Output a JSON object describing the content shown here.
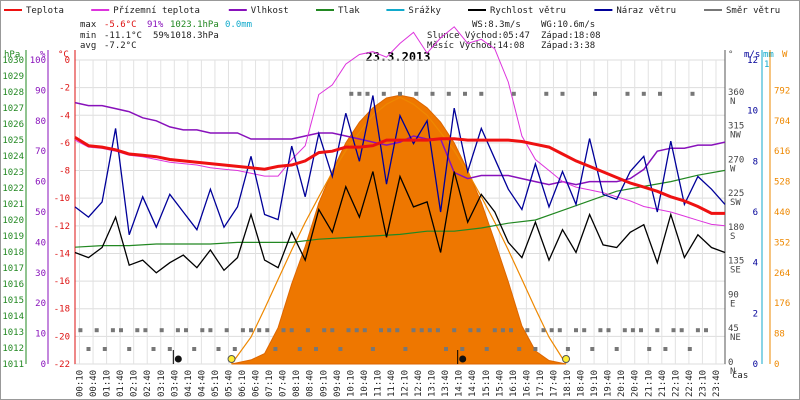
{
  "chart_data": {
    "type": "line",
    "title": "23.3.2013",
    "legend": [
      {
        "name": "Teplota",
        "color": "#ee1111"
      },
      {
        "name": "Přízemní teplota",
        "color": "#dd33dd"
      },
      {
        "name": "Vlhkost",
        "color": "#8811bb"
      },
      {
        "name": "Tlak",
        "color": "#228822"
      },
      {
        "name": "Srážky",
        "color": "#11aacc"
      },
      {
        "name": "Rychlost větru",
        "color": "#000000"
      },
      {
        "name": "Náraz větru",
        "color": "#000099"
      },
      {
        "name": "Směr větru",
        "color": "#777777"
      }
    ],
    "stats": {
      "max_label": "max",
      "min_label": "min",
      "avg_label": "avg",
      "max_temp": "-5.6°C",
      "max_hum": "91%",
      "max_press": "1023.1hPa",
      "max_rain": "0.0mm",
      "min_temp": "-11.1°C",
      "min_hum": "59%",
      "min_press": "1018.3hPa",
      "avg_temp": "-7.2°C",
      "ws": "WS:8.3m/s",
      "wg": "WG:10.6m/s",
      "sun": "Slunce Východ:05:47",
      "sun_set": "Západ:18:08",
      "moon": "Měsíc  Východ:14:08",
      "moon_set": "Západ:3:38"
    },
    "axis_units": {
      "hpa": "hPa",
      "pct": "%",
      "degc": "°C",
      "deg": "°",
      "ms": "m/s",
      "mm": "mm",
      "w": "W",
      "cas": "čas"
    },
    "y_left_hpa": [
      "1030",
      "1029",
      "1028",
      "1027",
      "1026",
      "1025",
      "1024",
      "1023",
      "1022",
      "1021",
      "1020",
      "1019",
      "1018",
      "1017",
      "1016",
      "1015",
      "1014",
      "1013",
      "1012",
      "1011"
    ],
    "y_left_pct": [
      "100",
      "90",
      "80",
      "70",
      "60",
      "50",
      "40",
      "30",
      "20",
      "10",
      "0"
    ],
    "y_left_temp": [
      "0",
      "-2",
      "-4",
      "-6",
      "-8",
      "-10",
      "-12",
      "-14",
      "-16",
      "-18",
      "-20",
      "-22"
    ],
    "y_right_deg": [
      "360",
      "315",
      "270",
      "225",
      "180",
      "135",
      "90",
      "45",
      "0"
    ],
    "y_right_dir": [
      "N",
      "NW",
      "W",
      "SW",
      "S",
      "SE",
      "E",
      "NE",
      "N"
    ],
    "y_right_ms": [
      "12",
      "10",
      "8",
      "6",
      "4",
      "2",
      "0"
    ],
    "y_right_mm": [
      "1"
    ],
    "y_right_w": [
      "792",
      "704",
      "616",
      "528",
      "440",
      "352",
      "264",
      "176",
      "88",
      "0"
    ],
    "x_ticks": [
      "00:10",
      "00:40",
      "01:10",
      "01:40",
      "02:10",
      "02:40",
      "03:10",
      "03:40",
      "04:10",
      "04:40",
      "05:10",
      "05:40",
      "06:10",
      "06:40",
      "07:10",
      "07:40",
      "08:10",
      "08:40",
      "09:10",
      "09:40",
      "10:10",
      "10:40",
      "11:10",
      "11:40",
      "12:10",
      "12:40",
      "13:10",
      "13:40",
      "14:10",
      "14:40",
      "15:10",
      "15:40",
      "16:10",
      "16:40",
      "17:10",
      "17:40",
      "18:10",
      "18:40",
      "19:10",
      "19:40",
      "20:10",
      "20:40",
      "21:10",
      "21:40",
      "22:10",
      "22:40",
      "23:10",
      "23:40"
    ],
    "x_range_hours": [
      0,
      24
    ],
    "temp_range": [
      -22,
      0
    ],
    "pct_range": [
      0,
      100
    ],
    "ms_range": [
      0,
      12
    ],
    "w_range": [
      0,
      880
    ],
    "deg_range": [
      0,
      405
    ],
    "sun_rise_h": 5.78,
    "sun_set_h": 18.13,
    "moon_rise_h": 14.13,
    "moon_set_h": 3.63,
    "temperature": {
      "hours": [
        0,
        0.5,
        1,
        1.5,
        2,
        2.5,
        3,
        3.5,
        4,
        4.5,
        5,
        5.5,
        6,
        6.5,
        7,
        7.5,
        8,
        8.5,
        9,
        9.5,
        10,
        10.5,
        11,
        11.5,
        12,
        12.5,
        13,
        13.5,
        14,
        14.5,
        15,
        15.5,
        16,
        16.5,
        17,
        17.5,
        18,
        18.5,
        19,
        19.5,
        20,
        20.5,
        21,
        21.5,
        22,
        22.5,
        23,
        23.5,
        24
      ],
      "values": [
        -5.6,
        -6.2,
        -6.3,
        -6.5,
        -6.8,
        -6.9,
        -7.0,
        -7.2,
        -7.3,
        -7.4,
        -7.5,
        -7.6,
        -7.7,
        -7.8,
        -7.9,
        -7.7,
        -7.6,
        -7.3,
        -6.7,
        -6.6,
        -6.3,
        -6.3,
        -6.2,
        -5.8,
        -5.8,
        -5.8,
        -5.8,
        -5.7,
        -5.7,
        -5.8,
        -5.8,
        -5.8,
        -5.8,
        -5.9,
        -6.1,
        -6.3,
        -6.8,
        -7.3,
        -7.7,
        -8.1,
        -8.5,
        -8.9,
        -9.2,
        -9.5,
        -9.9,
        -10.2,
        -10.6,
        -11.1,
        -11.1
      ]
    },
    "ground_temperature": {
      "hours": [
        0,
        0.5,
        1,
        1.5,
        2,
        2.5,
        3,
        3.5,
        4,
        4.5,
        5,
        5.5,
        6,
        6.5,
        7,
        7.5,
        8,
        8.5,
        9,
        9.5,
        10,
        10.5,
        11,
        11.5,
        12,
        12.5,
        13,
        13.5,
        14,
        14.5,
        15,
        15.5,
        16,
        16.5,
        17,
        17.5,
        18,
        18.5,
        19,
        19.5,
        20,
        20.5,
        21,
        21.5,
        22,
        22.5,
        23,
        23.5,
        24
      ],
      "values": [
        -5.8,
        -6.3,
        -6.4,
        -6.6,
        -6.9,
        -7.0,
        -7.2,
        -7.4,
        -7.5,
        -7.6,
        -7.8,
        -7.9,
        -8.0,
        -8.2,
        -8.4,
        -8.4,
        -7.2,
        -6.2,
        -2.5,
        -1.8,
        -0.3,
        0.4,
        0.6,
        0.2,
        1.2,
        2.0,
        0.5,
        1.6,
        2.4,
        1.2,
        1.5,
        0.8,
        -1.6,
        -5.5,
        -7.2,
        -8.0,
        -8.8,
        -9.2,
        -9.4,
        -9.6,
        -9.9,
        -10.2,
        -10.6,
        -10.8,
        -11.0,
        -11.3,
        -11.6,
        -11.9,
        -12.0
      ]
    },
    "humidity": {
      "hours": [
        0,
        0.5,
        1,
        1.5,
        2,
        2.5,
        3,
        3.5,
        4,
        4.5,
        5,
        5.5,
        6,
        6.5,
        7,
        7.5,
        8,
        8.5,
        9,
        9.5,
        10,
        10.5,
        11,
        11.5,
        12,
        12.5,
        13,
        13.5,
        14,
        14.5,
        15,
        15.5,
        16,
        16.5,
        17,
        17.5,
        18,
        18.5,
        19,
        19.5,
        20,
        20.5,
        21,
        21.5,
        22,
        22.5,
        23,
        23.5,
        24
      ],
      "values": [
        86,
        85,
        85,
        84,
        83,
        81,
        80,
        78,
        77,
        77,
        76,
        76,
        76,
        74,
        74,
        74,
        74,
        75,
        76,
        76,
        75,
        74,
        73,
        72,
        73,
        75,
        74,
        74,
        63,
        61,
        62,
        62,
        62,
        61,
        60,
        59,
        60,
        59,
        60,
        60,
        60,
        61,
        64,
        70,
        71,
        71,
        72,
        72,
        73
      ]
    },
    "pressure": {
      "hours": [
        0,
        1,
        2,
        3,
        4,
        5,
        6,
        7,
        8,
        9,
        10,
        11,
        12,
        13,
        14,
        15,
        16,
        17,
        18,
        19,
        20,
        21,
        22,
        23,
        24
      ],
      "values": [
        1018.3,
        1018.4,
        1018.4,
        1018.5,
        1018.5,
        1018.5,
        1018.6,
        1018.6,
        1018.6,
        1018.8,
        1018.9,
        1019.0,
        1019.1,
        1019.3,
        1019.3,
        1019.5,
        1019.8,
        1020.0,
        1020.6,
        1021.2,
        1021.8,
        1022.1,
        1022.4,
        1022.8,
        1023.1
      ]
    },
    "wind_speed": {
      "hours": [
        0,
        0.5,
        1,
        1.5,
        2,
        2.5,
        3,
        3.5,
        4,
        4.5,
        5,
        5.5,
        6,
        6.5,
        7,
        7.5,
        8,
        8.5,
        9,
        9.5,
        10,
        10.5,
        11,
        11.5,
        12,
        12.5,
        13,
        13.5,
        14,
        14.5,
        15,
        15.5,
        16,
        16.5,
        17,
        17.5,
        18,
        18.5,
        19,
        19.5,
        20,
        20.5,
        21,
        21.5,
        22,
        22.5,
        23,
        23.5,
        24
      ],
      "values": [
        4.4,
        4.2,
        4.6,
        5.8,
        3.9,
        4.1,
        3.6,
        4.0,
        4.3,
        3.8,
        4.5,
        3.7,
        4.2,
        5.9,
        4.1,
        3.8,
        5.2,
        4.1,
        6.1,
        5.2,
        7.0,
        5.8,
        7.6,
        5.0,
        7.4,
        6.2,
        6.4,
        4.4,
        7.6,
        5.6,
        6.7,
        6.0,
        4.8,
        4.2,
        5.6,
        4.1,
        5.3,
        4.4,
        5.9,
        4.7,
        4.6,
        5.2,
        5.5,
        4.0,
        5.9,
        4.2,
        5.1,
        4.6,
        4.4
      ]
    },
    "wind_gust": {
      "hours": [
        0,
        0.5,
        1,
        1.5,
        2,
        2.5,
        3,
        3.5,
        4,
        4.5,
        5,
        5.5,
        6,
        6.5,
        7,
        7.5,
        8,
        8.5,
        9,
        9.5,
        10,
        10.5,
        11,
        11.5,
        12,
        12.5,
        13,
        13.5,
        14,
        14.5,
        15,
        15.5,
        16,
        16.5,
        17,
        17.5,
        18,
        18.5,
        19,
        19.5,
        20,
        20.5,
        21,
        21.5,
        22,
        22.5,
        23,
        23.5,
        24
      ],
      "values": [
        6.2,
        5.8,
        6.4,
        9.3,
        5.1,
        6.6,
        5.4,
        6.7,
        6.0,
        5.3,
        6.9,
        5.4,
        6.2,
        8.2,
        5.9,
        5.7,
        8.6,
        6.6,
        9.1,
        7.4,
        9.9,
        8.0,
        10.6,
        7.1,
        9.8,
        8.7,
        9.6,
        6.0,
        10.1,
        7.6,
        9.3,
        8.1,
        6.9,
        6.1,
        7.9,
        6.2,
        7.6,
        6.3,
        8.9,
        6.7,
        6.5,
        7.6,
        8.2,
        6.0,
        8.8,
        6.3,
        7.4,
        6.9,
        6.3
      ]
    },
    "solar_radiation": {
      "hours": [
        5.78,
        6.5,
        7,
        7.5,
        8,
        8.5,
        9,
        9.5,
        10,
        10.5,
        11,
        11.5,
        12,
        12.5,
        13,
        13.5,
        14,
        14.5,
        15,
        15.5,
        16,
        16.5,
        17,
        17.5,
        18.13
      ],
      "values": [
        0,
        12,
        30,
        105,
        232,
        340,
        466,
        558,
        640,
        700,
        742,
        770,
        778,
        770,
        742,
        700,
        640,
        560,
        468,
        355,
        238,
        110,
        38,
        10,
        0
      ]
    },
    "solar_theoretical": {
      "hours": [
        5.78,
        6.5,
        7,
        7.5,
        8,
        8.5,
        9,
        9.5,
        10,
        10.5,
        11,
        11.5,
        12,
        12.5,
        13,
        13.5,
        14,
        14.5,
        15,
        15.5,
        16,
        16.5,
        17,
        17.5,
        18.13
      ],
      "values": [
        0,
        78,
        160,
        245,
        330,
        410,
        484,
        555,
        618,
        670,
        720,
        752,
        772,
        752,
        720,
        670,
        618,
        555,
        484,
        410,
        330,
        245,
        160,
        78,
        0
      ]
    },
    "wind_direction": {
      "hours": [
        0.2,
        0.5,
        0.8,
        1.1,
        1.4,
        1.7,
        2.0,
        2.3,
        2.6,
        2.9,
        3.2,
        3.5,
        3.8,
        4.1,
        4.4,
        4.7,
        5.0,
        5.3,
        5.6,
        5.9,
        6.2,
        6.5,
        6.8,
        7.1,
        7.4,
        7.7,
        8.0,
        8.3,
        8.6,
        8.9,
        9.2,
        9.5,
        9.8,
        10.1,
        10.4,
        10.7,
        11.0,
        11.3,
        11.6,
        11.9,
        12.2,
        12.5,
        12.8,
        13.1,
        13.4,
        13.7,
        14.0,
        14.3,
        14.6,
        14.9,
        15.2,
        15.5,
        15.8,
        16.1,
        16.4,
        16.7,
        17.0,
        17.3,
        17.6,
        17.9,
        18.2,
        18.5,
        18.8,
        19.1,
        19.4,
        19.7,
        20.0,
        20.3,
        20.6,
        20.9,
        21.2,
        21.5,
        21.8,
        22.1,
        22.4,
        22.7,
        23.0,
        23.3
      ],
      "values": [
        45,
        20,
        45,
        20,
        45,
        45,
        20,
        45,
        45,
        20,
        45,
        20,
        45,
        45,
        20,
        45,
        45,
        20,
        45,
        20,
        45,
        45,
        45,
        45,
        20,
        45,
        45,
        20,
        45,
        20,
        45,
        45,
        20,
        45,
        45,
        45,
        20,
        45,
        45,
        45,
        20,
        45,
        45,
        45,
        45,
        20,
        45,
        20,
        45,
        45,
        20,
        45,
        45,
        45,
        20,
        45,
        20,
        45,
        45,
        45,
        20,
        45,
        45,
        20,
        45,
        45,
        20,
        45,
        45,
        45,
        20,
        45,
        20,
        45,
        45,
        20,
        45,
        45
      ]
    },
    "wind_direction_north": {
      "hours": [
        10.2,
        10.5,
        10.8,
        11.4,
        12.0,
        12.6,
        13.2,
        13.8,
        14.4,
        15.0,
        16.2,
        17.4,
        18.0,
        19.2,
        20.4,
        21.0,
        21.6,
        22.8
      ],
      "values": [
        360,
        360,
        360,
        360,
        360,
        360,
        360,
        360,
        360,
        360,
        360,
        360,
        360,
        360,
        360,
        360,
        360,
        360
      ]
    }
  }
}
